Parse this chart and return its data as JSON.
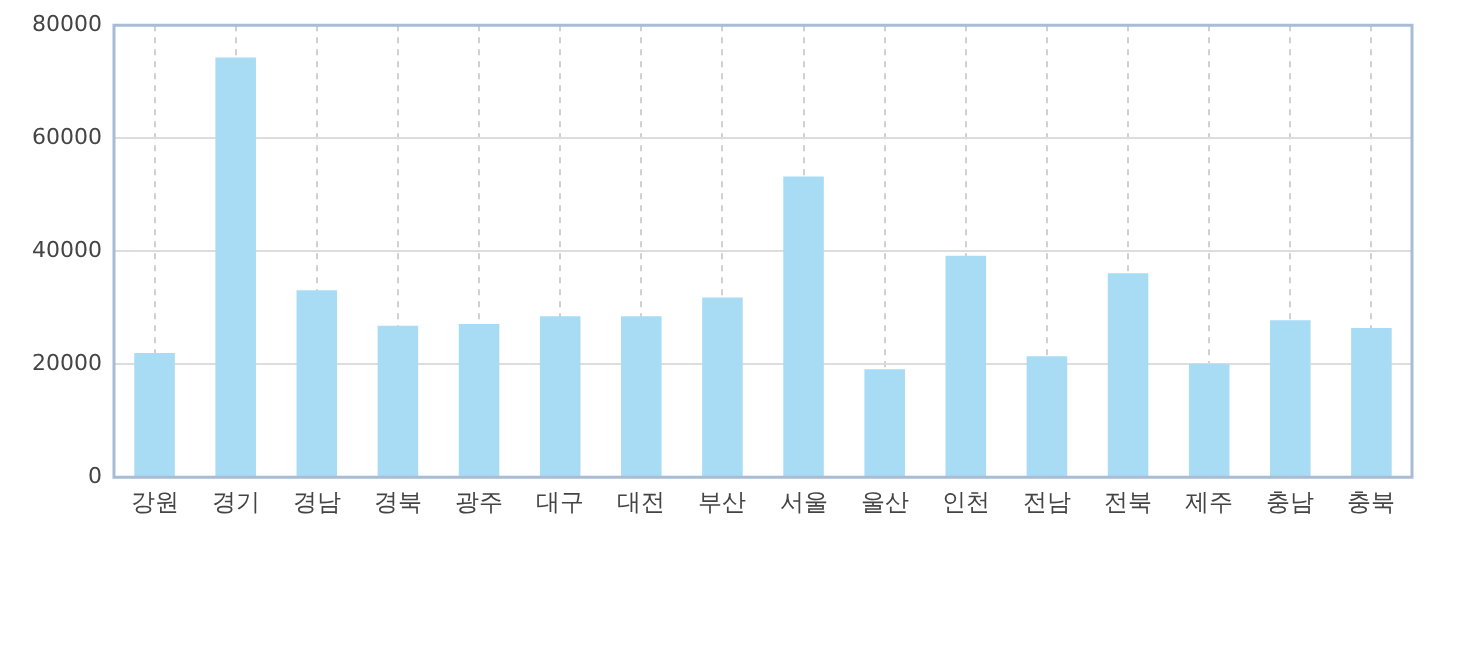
{
  "chart_data": {
    "type": "bar",
    "categories": [
      "강원",
      "경기",
      "경남",
      "경북",
      "광주",
      "대구",
      "대전",
      "부산",
      "서울",
      "울산",
      "인천",
      "전남",
      "전북",
      "제주",
      "충남",
      "충북"
    ],
    "series": [
      {
        "color": "#a8dcf5",
        "values": [
          22000,
          74300,
          33100,
          26800,
          27100,
          28500,
          28500,
          31800,
          53200,
          19100,
          39200,
          21400,
          36100,
          20100,
          27800,
          26400
        ]
      }
    ],
    "ylim": [
      0,
      80000
    ],
    "yticks": [
      0,
      20000,
      40000,
      60000,
      80000
    ],
    "grid": true,
    "legend": false
  }
}
